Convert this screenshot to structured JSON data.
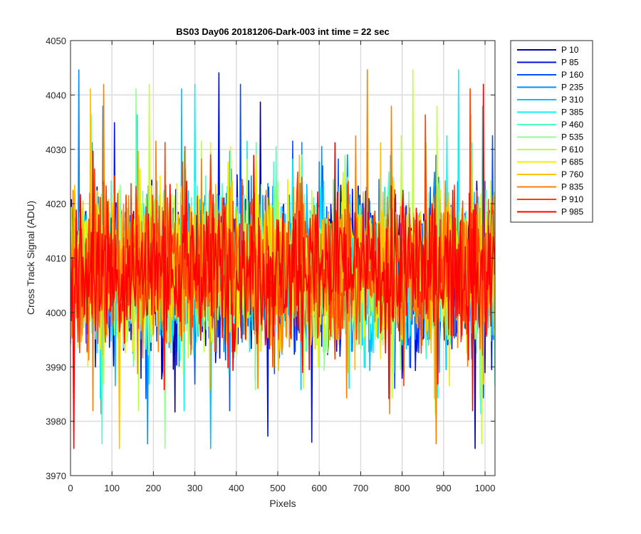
{
  "chart_data": {
    "type": "line",
    "title": "BS03 Day06 20181206-Dark-003 int time = 22 sec",
    "xlabel": "Pixels",
    "ylabel": "Cross Track Signal (ADU)",
    "xlim": [
      0,
      1024
    ],
    "ylim": [
      3970,
      4050
    ],
    "xticks": [
      0,
      100,
      200,
      300,
      400,
      500,
      600,
      700,
      800,
      900,
      1000
    ],
    "yticks": [
      3970,
      3980,
      3990,
      4000,
      4010,
      4020,
      4030,
      4040,
      4050
    ],
    "grid": true,
    "legend_position": "outside-top-right",
    "signal_summary": {
      "mean": 4008,
      "typical_min": 3990,
      "typical_max": 4027,
      "extreme_min": 3975,
      "extreme_max": 4050
    },
    "series": [
      {
        "name": "P 10",
        "color": "#0000a8"
      },
      {
        "name": "P 85",
        "color": "#0010e0"
      },
      {
        "name": "P 160",
        "color": "#0050ff"
      },
      {
        "name": "P 235",
        "color": "#0090ff"
      },
      {
        "name": "P 310",
        "color": "#00c0ff"
      },
      {
        "name": "P 385",
        "color": "#10f0f0"
      },
      {
        "name": "P 460",
        "color": "#50ffc0"
      },
      {
        "name": "P 535",
        "color": "#90ff90"
      },
      {
        "name": "P 610",
        "color": "#c0ff40"
      },
      {
        "name": "P 685",
        "color": "#f0f000"
      },
      {
        "name": "P 760",
        "color": "#ffc000"
      },
      {
        "name": "P 835",
        "color": "#ff8000"
      },
      {
        "name": "P 910",
        "color": "#ff4000"
      },
      {
        "name": "P 985",
        "color": "#ff0000"
      }
    ]
  }
}
